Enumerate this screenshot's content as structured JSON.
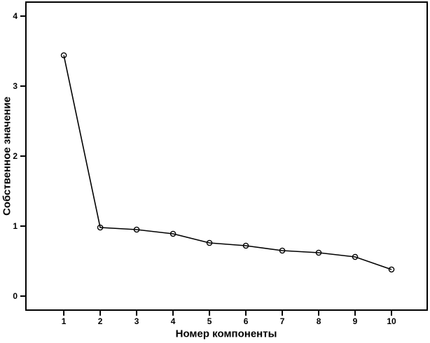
{
  "chart_data": {
    "type": "line",
    "title": "",
    "xlabel": "Номер компоненты",
    "ylabel": "Собственное значение",
    "x": [
      1,
      2,
      3,
      4,
      5,
      6,
      7,
      8,
      9,
      10
    ],
    "values": [
      3.44,
      0.98,
      0.95,
      0.89,
      0.76,
      0.72,
      0.65,
      0.62,
      0.56,
      0.38
    ],
    "xticks": [
      "1",
      "2",
      "3",
      "4",
      "5",
      "6",
      "7",
      "8",
      "9",
      "10"
    ],
    "yticks": [
      "0",
      "1",
      "2",
      "3",
      "4"
    ],
    "xtick_values": [
      1,
      2,
      3,
      4,
      5,
      6,
      7,
      8,
      9,
      10
    ],
    "ytick_values": [
      0,
      1,
      2,
      3,
      4
    ],
    "xlim": [
      -0.06,
      11.0
    ],
    "ylim": [
      -0.21,
      4.21
    ],
    "grid": false,
    "legend": "none",
    "marker": "open-circle",
    "line_color": "#000000",
    "frame_color": "#000000",
    "background": "#ffffff"
  }
}
